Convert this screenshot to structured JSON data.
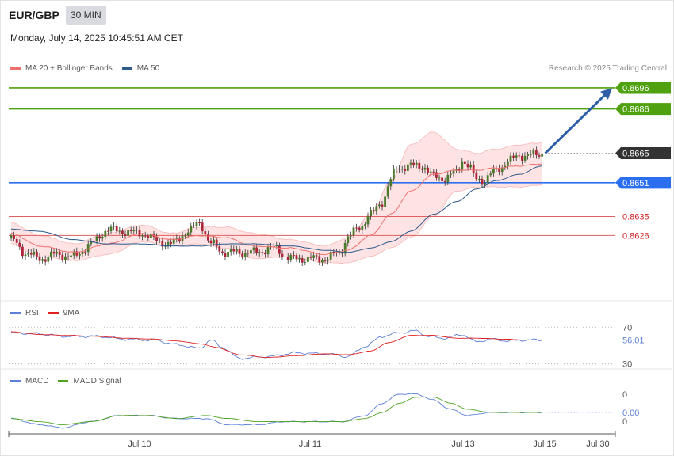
{
  "header": {
    "symbol": "EUR/GBP",
    "interval": "30 MIN",
    "datetime": "Monday, July 14, 2025 10:45:51 AM CET",
    "credit": "Research © 2025 Trading Central"
  },
  "legends": {
    "price": [
      {
        "label": "MA 20 + Bollinger Bands",
        "color": "#f07070"
      },
      {
        "label": "MA 50",
        "color": "#2e5a8c"
      }
    ],
    "rsi": [
      {
        "label": "RSI",
        "color": "#5b7fd6"
      },
      {
        "label": "9MA",
        "color": "#e02020"
      }
    ],
    "macd": [
      {
        "label": "MACD",
        "color": "#5b7fd6"
      },
      {
        "label": "MACD Signal",
        "color": "#4fa320"
      }
    ]
  },
  "chart_data": {
    "type": "line",
    "x_axis": {
      "labels": [
        "Jul 10",
        "Jul 11",
        "Jul 13",
        "Jul 15",
        "Jul 30"
      ]
    },
    "price": {
      "ylim": [
        0.8595,
        0.8702
      ],
      "levels": [
        {
          "value": 0.8696,
          "label": "0.8696",
          "kind": "resistance",
          "color": "#4fa10f"
        },
        {
          "value": 0.8686,
          "label": "0.8686",
          "kind": "resistance",
          "color": "#4fa10f"
        },
        {
          "value": 0.8665,
          "label": "0.8665",
          "kind": "current",
          "color": "#333333"
        },
        {
          "value": 0.8651,
          "label": "0.8651",
          "kind": "pivot",
          "color": "#2b6ff0"
        },
        {
          "value": 0.8635,
          "label": "0.8635",
          "kind": "support",
          "color": "#e06060"
        },
        {
          "value": 0.8626,
          "label": "0.8626",
          "kind": "support",
          "color": "#e06060"
        }
      ],
      "close_anchors": [
        [
          0,
          0.8624
        ],
        [
          5,
          0.8618
        ],
        [
          10,
          0.8615
        ],
        [
          16,
          0.8617
        ],
        [
          22,
          0.8616
        ],
        [
          28,
          0.8622
        ],
        [
          34,
          0.8629
        ],
        [
          38,
          0.8628
        ],
        [
          46,
          0.8627
        ],
        [
          52,
          0.8623
        ],
        [
          56,
          0.8622
        ],
        [
          62,
          0.8628
        ],
        [
          66,
          0.8632
        ],
        [
          70,
          0.8622
        ],
        [
          75,
          0.8618
        ],
        [
          85,
          0.8618
        ],
        [
          92,
          0.862
        ],
        [
          98,
          0.8615
        ],
        [
          110,
          0.8615
        ],
        [
          115,
          0.8618
        ],
        [
          118,
          0.8625
        ],
        [
          122,
          0.863
        ],
        [
          126,
          0.8636
        ],
        [
          130,
          0.8642
        ],
        [
          133,
          0.8652
        ],
        [
          135,
          0.8658
        ],
        [
          140,
          0.8659
        ],
        [
          144,
          0.8659
        ],
        [
          148,
          0.8654
        ],
        [
          152,
          0.8653
        ],
        [
          156,
          0.8656
        ],
        [
          158,
          0.8662
        ],
        [
          160,
          0.8659
        ],
        [
          163,
          0.8653
        ],
        [
          166,
          0.8652
        ],
        [
          168,
          0.8655
        ],
        [
          171,
          0.8658
        ],
        [
          174,
          0.8661
        ],
        [
          178,
          0.8664
        ],
        [
          183,
          0.8664
        ],
        [
          186,
          0.8665
        ]
      ],
      "ma20_anchors": [
        [
          0,
          0.8627
        ],
        [
          10,
          0.8621
        ],
        [
          22,
          0.8618
        ],
        [
          34,
          0.8622
        ],
        [
          46,
          0.8627
        ],
        [
          56,
          0.8624
        ],
        [
          66,
          0.8626
        ],
        [
          75,
          0.8625
        ],
        [
          85,
          0.8621
        ],
        [
          98,
          0.862
        ],
        [
          110,
          0.8617
        ],
        [
          118,
          0.8619
        ],
        [
          126,
          0.8626
        ],
        [
          133,
          0.8636
        ],
        [
          140,
          0.8647
        ],
        [
          148,
          0.8655
        ],
        [
          156,
          0.8657
        ],
        [
          163,
          0.8657
        ],
        [
          170,
          0.8658
        ],
        [
          178,
          0.8659
        ],
        [
          186,
          0.866
        ]
      ],
      "ma50_anchors": [
        [
          0,
          0.8629
        ],
        [
          10,
          0.8628
        ],
        [
          22,
          0.8624
        ],
        [
          34,
          0.8622
        ],
        [
          46,
          0.8622
        ],
        [
          56,
          0.8621
        ],
        [
          66,
          0.8621
        ],
        [
          75,
          0.8622
        ],
        [
          85,
          0.8622
        ],
        [
          98,
          0.8621
        ],
        [
          110,
          0.8619
        ],
        [
          118,
          0.8618
        ],
        [
          126,
          0.862
        ],
        [
          133,
          0.8623
        ],
        [
          140,
          0.8628
        ],
        [
          148,
          0.8636
        ],
        [
          156,
          0.8642
        ],
        [
          163,
          0.8648
        ],
        [
          170,
          0.8652
        ],
        [
          178,
          0.8655
        ],
        [
          186,
          0.8659
        ]
      ],
      "band_width_anchors": [
        [
          0,
          0.0005
        ],
        [
          10,
          0.0005
        ],
        [
          22,
          0.0004
        ],
        [
          34,
          0.0005
        ],
        [
          46,
          0.0004
        ],
        [
          56,
          0.0003
        ],
        [
          66,
          0.0004
        ],
        [
          75,
          0.0005
        ],
        [
          85,
          0.0006
        ],
        [
          98,
          0.0004
        ],
        [
          110,
          0.0004
        ],
        [
          118,
          0.0006
        ],
        [
          126,
          0.001
        ],
        [
          133,
          0.0016
        ],
        [
          140,
          0.0022
        ],
        [
          148,
          0.002
        ],
        [
          156,
          0.001
        ],
        [
          163,
          0.0008
        ],
        [
          170,
          0.0009
        ],
        [
          178,
          0.001
        ],
        [
          186,
          0.001
        ]
      ],
      "projection": {
        "from": 0.8665,
        "to": 0.8696
      }
    },
    "rsi": {
      "ylim": [
        28,
        78
      ],
      "levels": [
        {
          "value": 70,
          "label": "70"
        },
        {
          "value": 30,
          "label": "30"
        }
      ],
      "current": {
        "value": 56.01,
        "label": "56.01"
      },
      "rsi_anchors": [
        [
          0,
          64
        ],
        [
          8,
          63
        ],
        [
          20,
          60
        ],
        [
          30,
          60
        ],
        [
          40,
          57
        ],
        [
          50,
          56
        ],
        [
          58,
          51
        ],
        [
          66,
          47
        ],
        [
          70,
          56
        ],
        [
          74,
          48
        ],
        [
          80,
          36
        ],
        [
          90,
          38
        ],
        [
          100,
          42
        ],
        [
          110,
          41
        ],
        [
          118,
          38
        ],
        [
          124,
          49
        ],
        [
          130,
          60
        ],
        [
          136,
          64
        ],
        [
          142,
          66
        ],
        [
          146,
          60
        ],
        [
          152,
          58
        ],
        [
          158,
          62
        ],
        [
          163,
          54
        ],
        [
          168,
          57
        ],
        [
          174,
          55
        ],
        [
          180,
          56
        ],
        [
          186,
          56
        ]
      ],
      "ma_anchors": [
        [
          0,
          65
        ],
        [
          10,
          62
        ],
        [
          20,
          61
        ],
        [
          30,
          60
        ],
        [
          40,
          58
        ],
        [
          50,
          57
        ],
        [
          58,
          55
        ],
        [
          66,
          52
        ],
        [
          72,
          48
        ],
        [
          80,
          40
        ],
        [
          90,
          37
        ],
        [
          100,
          39
        ],
        [
          110,
          41
        ],
        [
          118,
          40
        ],
        [
          126,
          44
        ],
        [
          132,
          53
        ],
        [
          140,
          61
        ],
        [
          148,
          61
        ],
        [
          156,
          58
        ],
        [
          164,
          58
        ],
        [
          172,
          57
        ],
        [
          180,
          56
        ],
        [
          186,
          56
        ]
      ]
    },
    "macd": {
      "ylim": [
        -0.0004,
        0.0011
      ],
      "level_labels": [
        "0",
        "0"
      ],
      "current": {
        "value": 0.0,
        "label": "0.00"
      },
      "macd_anchors": [
        [
          0,
          0.0001
        ],
        [
          10,
          -0.0001
        ],
        [
          18,
          -0.0002
        ],
        [
          28,
          0.0
        ],
        [
          38,
          0.0002
        ],
        [
          48,
          0.0002
        ],
        [
          58,
          0.0001
        ],
        [
          68,
          0.0001
        ],
        [
          76,
          -0.0001
        ],
        [
          86,
          -0.0001
        ],
        [
          96,
          0.0
        ],
        [
          106,
          0.0
        ],
        [
          116,
          -0.0
        ],
        [
          124,
          0.0002
        ],
        [
          130,
          0.0006
        ],
        [
          136,
          0.0009
        ],
        [
          142,
          0.0009
        ],
        [
          148,
          0.0007
        ],
        [
          154,
          0.0004
        ],
        [
          160,
          0.0002
        ],
        [
          168,
          0.0003
        ],
        [
          176,
          0.0003
        ],
        [
          186,
          0.0003
        ]
      ],
      "signal_anchors": [
        [
          0,
          0.0001
        ],
        [
          10,
          0.0
        ],
        [
          18,
          -0.0001
        ],
        [
          28,
          -0.0
        ],
        [
          38,
          0.0002
        ],
        [
          48,
          0.0002
        ],
        [
          58,
          0.0001
        ],
        [
          68,
          0.0002
        ],
        [
          76,
          0.0001
        ],
        [
          86,
          -0.0
        ],
        [
          96,
          -0.0
        ],
        [
          106,
          0.0
        ],
        [
          116,
          0.0
        ],
        [
          124,
          0.0001
        ],
        [
          130,
          0.0003
        ],
        [
          136,
          0.0006
        ],
        [
          142,
          0.0008
        ],
        [
          148,
          0.0008
        ],
        [
          154,
          0.0006
        ],
        [
          160,
          0.0004
        ],
        [
          168,
          0.0003
        ],
        [
          176,
          0.0003
        ],
        [
          186,
          0.0003
        ]
      ]
    }
  }
}
